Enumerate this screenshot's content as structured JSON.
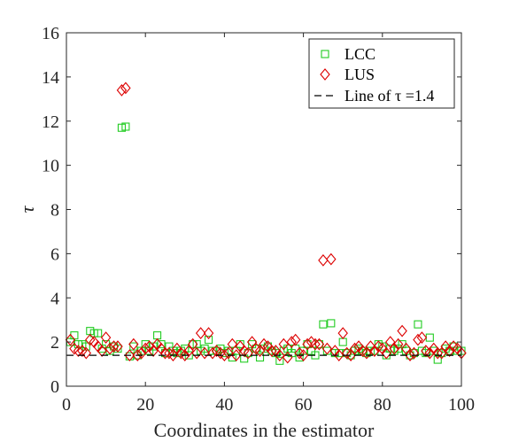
{
  "chart_data": {
    "type": "scatter",
    "xlabel": "Coordinates in the estimator",
    "ylabel": "τ",
    "xlim": [
      0,
      100
    ],
    "ylim": [
      0,
      16
    ],
    "xticks": [
      "0",
      "20",
      "40",
      "60",
      "80",
      "100"
    ],
    "yticks": [
      "0",
      "2",
      "4",
      "6",
      "8",
      "10",
      "12",
      "14",
      "16"
    ],
    "grid": false,
    "legend_position": "top-right",
    "series": [
      {
        "name": "LCC",
        "marker": "square",
        "color": "#22cc22",
        "x": [
          1,
          2,
          3,
          4,
          5,
          6,
          7,
          8,
          9,
          10,
          11,
          12,
          13,
          14,
          15,
          16,
          17,
          18,
          19,
          20,
          21,
          22,
          23,
          24,
          25,
          26,
          27,
          28,
          29,
          30,
          31,
          32,
          33,
          34,
          35,
          36,
          37,
          38,
          39,
          40,
          41,
          42,
          43,
          44,
          45,
          46,
          47,
          48,
          49,
          50,
          51,
          52,
          53,
          54,
          55,
          56,
          57,
          58,
          59,
          60,
          61,
          62,
          63,
          64,
          65,
          66,
          67,
          68,
          69,
          70,
          71,
          72,
          73,
          74,
          75,
          76,
          77,
          78,
          79,
          80,
          81,
          82,
          83,
          84,
          85,
          86,
          87,
          88,
          89,
          90,
          91,
          92,
          93,
          94,
          95,
          96,
          97,
          98,
          99,
          100
        ],
        "y": [
          2.0,
          2.3,
          1.9,
          1.9,
          1.8,
          2.5,
          2.4,
          2.4,
          1.7,
          1.9,
          1.6,
          1.8,
          1.7,
          11.7,
          11.75,
          1.35,
          1.8,
          1.4,
          1.6,
          1.9,
          1.6,
          1.8,
          2.3,
          1.9,
          1.5,
          1.8,
          1.6,
          1.5,
          1.6,
          1.7,
          1.4,
          1.9,
          1.9,
          1.6,
          1.7,
          2.1,
          1.6,
          1.6,
          1.7,
          1.5,
          1.6,
          1.3,
          1.6,
          1.9,
          1.25,
          1.5,
          1.9,
          1.7,
          1.3,
          1.7,
          1.8,
          1.6,
          1.5,
          1.15,
          1.6,
          1.7,
          1.5,
          1.7,
          1.3,
          1.6,
          1.9,
          1.6,
          1.4,
          1.9,
          2.8,
          1.6,
          2.85,
          1.5,
          1.5,
          2.0,
          1.5,
          1.4,
          1.6,
          1.7,
          1.6,
          1.5,
          1.6,
          1.6,
          1.9,
          1.8,
          1.4,
          1.7,
          1.6,
          1.7,
          1.9,
          1.6,
          1.4,
          1.5,
          2.8,
          1.6,
          1.5,
          2.2,
          1.6,
          1.2,
          1.5,
          1.7,
          1.6,
          1.8,
          1.6,
          1.6
        ]
      },
      {
        "name": "LUS",
        "marker": "diamond",
        "color": "#dd0000",
        "x": [
          1,
          2,
          3,
          4,
          5,
          6,
          7,
          8,
          9,
          10,
          11,
          12,
          13,
          14,
          15,
          16,
          17,
          18,
          19,
          20,
          21,
          22,
          23,
          24,
          25,
          26,
          27,
          28,
          29,
          30,
          31,
          32,
          33,
          34,
          35,
          36,
          37,
          38,
          39,
          40,
          41,
          42,
          43,
          44,
          45,
          46,
          47,
          48,
          49,
          50,
          51,
          52,
          53,
          54,
          55,
          56,
          57,
          58,
          59,
          60,
          61,
          62,
          63,
          64,
          65,
          66,
          67,
          68,
          69,
          70,
          71,
          72,
          73,
          74,
          75,
          76,
          77,
          78,
          79,
          80,
          81,
          82,
          83,
          84,
          85,
          86,
          87,
          88,
          89,
          90,
          91,
          92,
          93,
          94,
          95,
          96,
          97,
          98,
          99,
          100
        ],
        "y": [
          2.1,
          1.7,
          1.6,
          1.6,
          1.5,
          2.1,
          2.0,
          1.8,
          1.6,
          2.2,
          1.7,
          1.8,
          1.8,
          13.4,
          13.5,
          1.4,
          1.9,
          1.4,
          1.5,
          1.7,
          1.8,
          1.6,
          1.9,
          1.7,
          1.5,
          1.5,
          1.4,
          1.7,
          1.5,
          1.4,
          1.6,
          1.9,
          1.5,
          2.4,
          1.5,
          2.4,
          1.5,
          1.6,
          1.5,
          1.4,
          1.5,
          1.9,
          1.4,
          1.8,
          1.6,
          1.5,
          2.0,
          1.7,
          1.6,
          1.9,
          1.8,
          1.6,
          1.6,
          1.4,
          1.9,
          1.3,
          2.0,
          2.1,
          1.5,
          1.4,
          1.9,
          2.0,
          1.9,
          1.9,
          5.7,
          1.7,
          5.75,
          1.6,
          1.4,
          2.4,
          1.5,
          1.4,
          1.7,
          1.8,
          1.6,
          1.5,
          1.8,
          1.6,
          1.8,
          1.7,
          1.5,
          2.0,
          1.7,
          1.9,
          2.5,
          1.7,
          1.4,
          1.5,
          2.1,
          2.2,
          1.6,
          1.5,
          1.7,
          1.5,
          1.5,
          1.8,
          1.6,
          1.8,
          1.7,
          1.5
        ]
      },
      {
        "name": "Line of τ =1.4",
        "type": "line",
        "style": "dashed",
        "color": "#000000",
        "x": [
          0,
          100
        ],
        "y": [
          1.4,
          1.4
        ]
      }
    ]
  }
}
